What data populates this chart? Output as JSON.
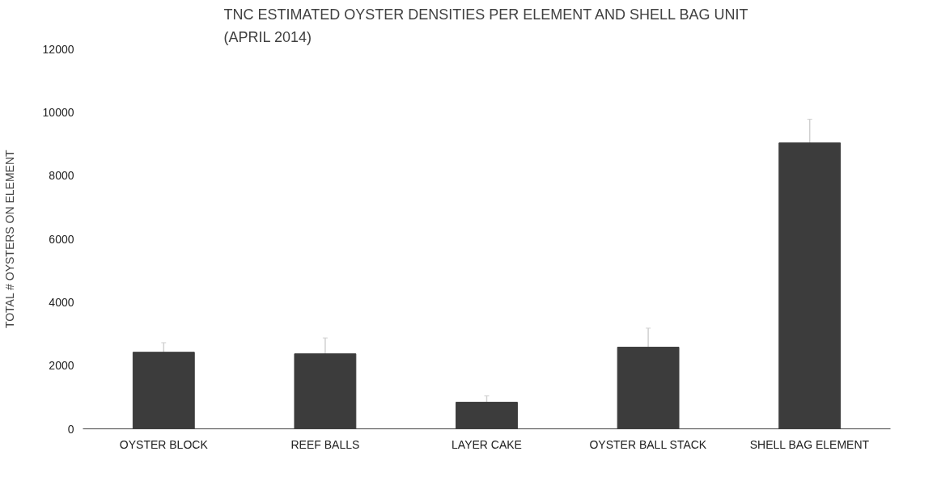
{
  "chart_data": {
    "type": "bar",
    "title": "TNC ESTIMATED OYSTER DENSITIES PER ELEMENT AND SHELL BAG UNIT\n(APRIL 2014)",
    "ylabel": "TOTAL # OYSTERS ON ELEMENT",
    "categories": [
      "OYSTER BLOCK",
      "REEF BALLS",
      "LAYER CAKE",
      "OYSTER BALL STACK",
      "SHELL BAG ELEMENT"
    ],
    "values": [
      2420,
      2370,
      840,
      2580,
      9030
    ],
    "errors": [
      300,
      500,
      200,
      600,
      750
    ],
    "color": "#3c3c3c",
    "ylim": [
      0,
      12000
    ],
    "yticks": [
      0,
      2000,
      4000,
      6000,
      8000,
      10000,
      12000
    ],
    "grid": false
  }
}
